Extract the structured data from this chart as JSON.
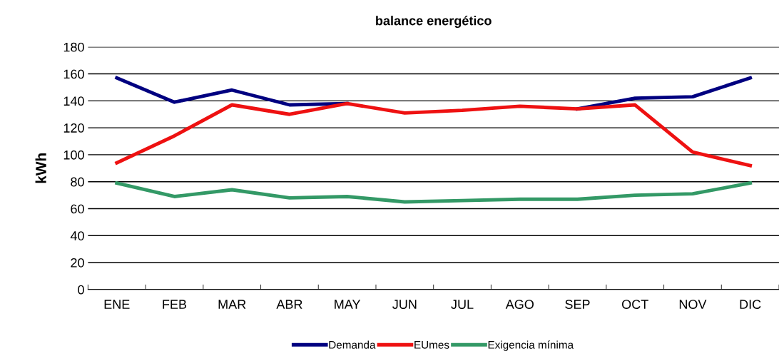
{
  "chart_data": {
    "type": "line",
    "title": "balance energético",
    "ylabel": "kWh",
    "categories": [
      "ENE",
      "FEB",
      "MAR",
      "ABR",
      "MAY",
      "JUN",
      "JUL",
      "AGO",
      "SEP",
      "OCT",
      "NOV",
      "DIC"
    ],
    "series": [
      {
        "name": "Demanda",
        "color": "#000080",
        "values": [
          157,
          139,
          148,
          137,
          138,
          null,
          null,
          null,
          134,
          142,
          143,
          157
        ]
      },
      {
        "name": "EUmes",
        "color": "#ee1111",
        "values": [
          94,
          114,
          137,
          130,
          138,
          131,
          133,
          136,
          134,
          137,
          102,
          92
        ]
      },
      {
        "name": "Exigencia mínima",
        "color": "#339966",
        "values": [
          79,
          69,
          74,
          68,
          69,
          65,
          66,
          67,
          67,
          70,
          71,
          79
        ]
      }
    ],
    "ylim": [
      0,
      180
    ],
    "yticks": [
      0,
      20,
      40,
      60,
      80,
      100,
      120,
      140,
      160,
      180
    ],
    "grid": "y",
    "legend": "bottom",
    "marker": "none",
    "line_style": "solid"
  }
}
